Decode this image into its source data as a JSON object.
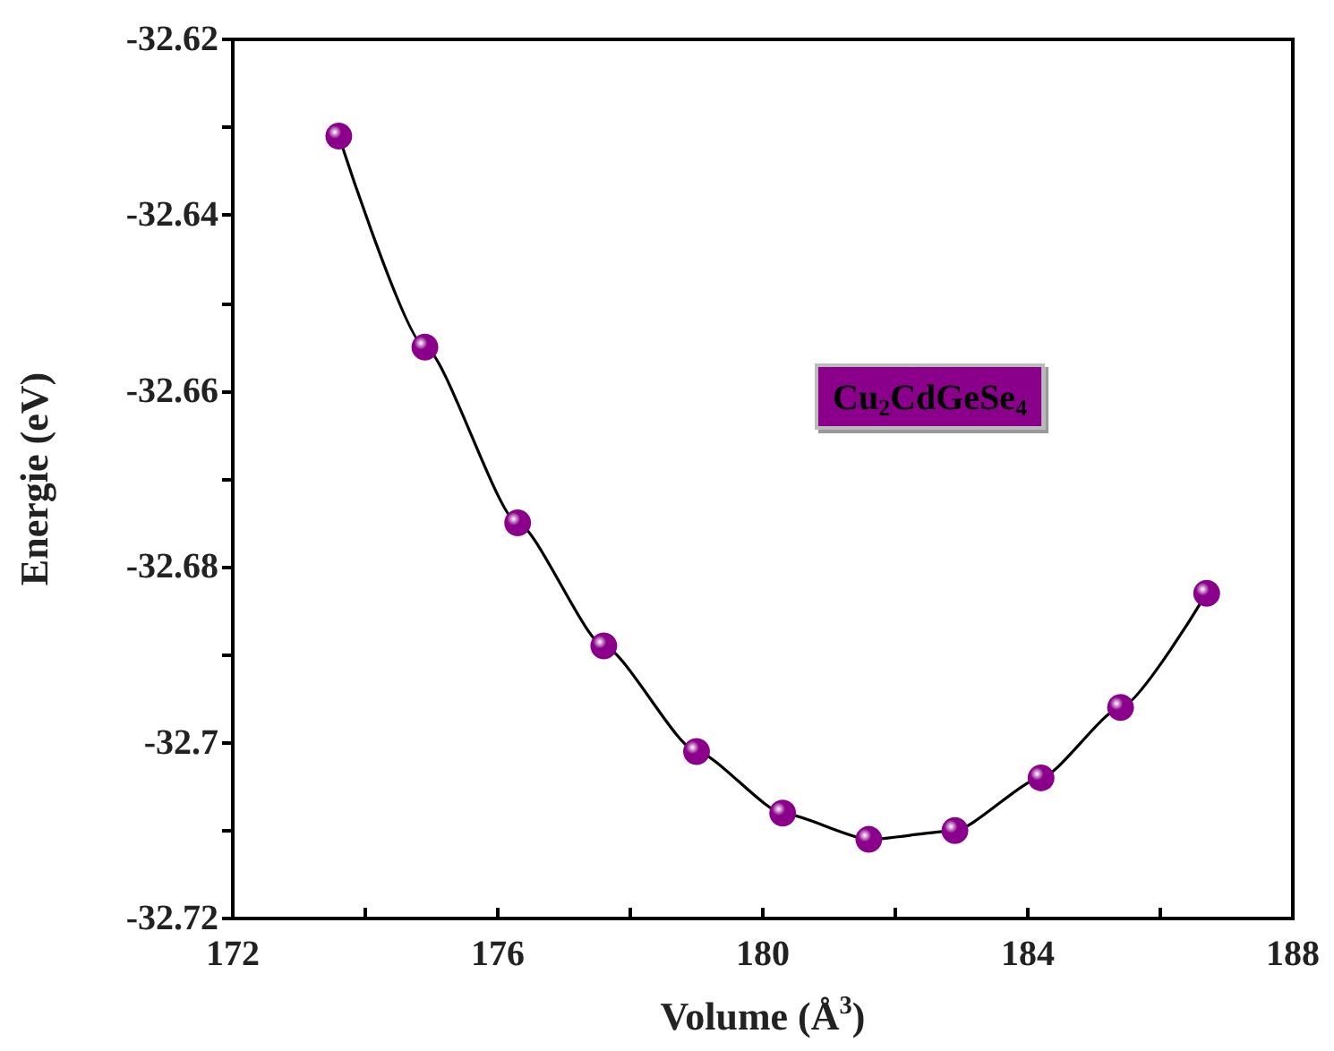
{
  "chart_data": {
    "type": "line",
    "xlabel": "Volume (Å$^{3}$)",
    "ylabel": "Energie (eV)",
    "annotations": [
      "Cu$_{2}$CdGeSe$_{4}$"
    ],
    "x": [
      173.6,
      174.9,
      176.3,
      177.6,
      179.0,
      180.3,
      181.6,
      182.9,
      184.2,
      185.4,
      186.7
    ],
    "series": [
      {
        "color": "#8b008b",
        "values": [
          -32.631,
          -32.655,
          -32.675,
          -32.689,
          -32.701,
          -32.708,
          -32.711,
          -32.71,
          -32.704,
          -32.696,
          -32.683
        ]
      }
    ],
    "xlim": [
      172,
      188
    ],
    "xticks": [
      172,
      {
        "value": 174,
        "label": null
      },
      176,
      {
        "value": 178,
        "label": null
      },
      180,
      {
        "value": 182,
        "label": null
      },
      184,
      {
        "value": 186,
        "label": null
      },
      188
    ],
    "ylim": [
      -32.72,
      -32.62
    ],
    "yticks": [
      -32.72,
      {
        "value": -32.71,
        "label": null
      },
      -32.7,
      {
        "value": -32.69,
        "label": null
      },
      -32.68,
      {
        "value": -32.67,
        "label": null
      },
      -32.66,
      {
        "value": -32.65,
        "label": null
      },
      -32.64,
      {
        "value": -32.63,
        "label": null
      },
      -32.62
    ],
    "marker": "circle",
    "line_style": "solid",
    "grid": false
  }
}
